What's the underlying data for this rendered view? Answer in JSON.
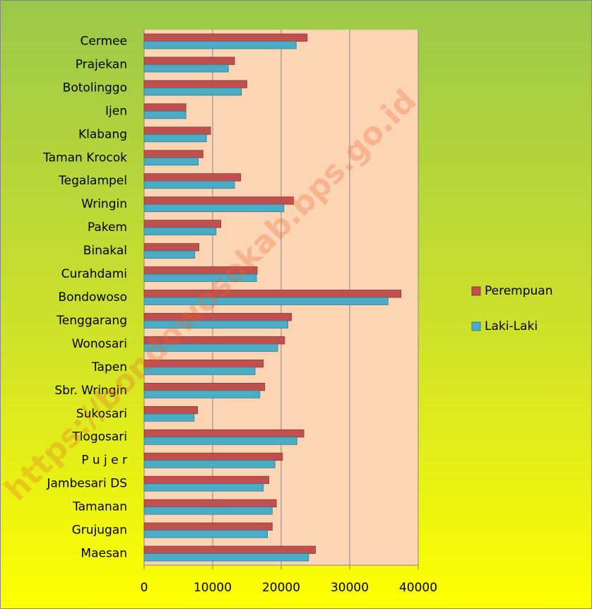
{
  "chart_data": {
    "type": "hbar",
    "annotation": "https://bondowosokab.bps.go.id",
    "categories": [
      "Cermee",
      "Prajekan",
      "Botolinggo",
      "Ijen",
      "Klabang",
      "Taman Krocok",
      "Tegalampel",
      "Wringin",
      "Pakem",
      "Binakal",
      "Curahdami",
      "Bondowoso",
      "Tenggarang",
      "Wonosari",
      "Tapen",
      "Sbr. Wringin",
      "Sukosari",
      "Tlogosari",
      "P u j e r",
      "Jambesari DS",
      "Tamanan",
      "Grujugan",
      "Maesan"
    ],
    "series": [
      {
        "name": "Perempuan",
        "color": "#c0504d",
        "values": [
          23800,
          13200,
          15000,
          6100,
          9700,
          8600,
          14100,
          21800,
          11200,
          8000,
          16500,
          37500,
          21500,
          20500,
          17400,
          17600,
          7800,
          23300,
          20200,
          18200,
          19300,
          18700,
          25000
        ]
      },
      {
        "name": "Laki-Laki",
        "color": "#4bacc6",
        "values": [
          22200,
          12300,
          14200,
          6100,
          9100,
          7900,
          13200,
          20400,
          10500,
          7400,
          16400,
          35600,
          21000,
          19500,
          16200,
          16900,
          7300,
          22300,
          19100,
          17400,
          18700,
          18000,
          24000
        ]
      }
    ],
    "xlim": [
      0,
      40000
    ],
    "xticks": [
      0,
      10000,
      20000,
      30000,
      40000
    ],
    "grid": true,
    "legend": "right"
  }
}
